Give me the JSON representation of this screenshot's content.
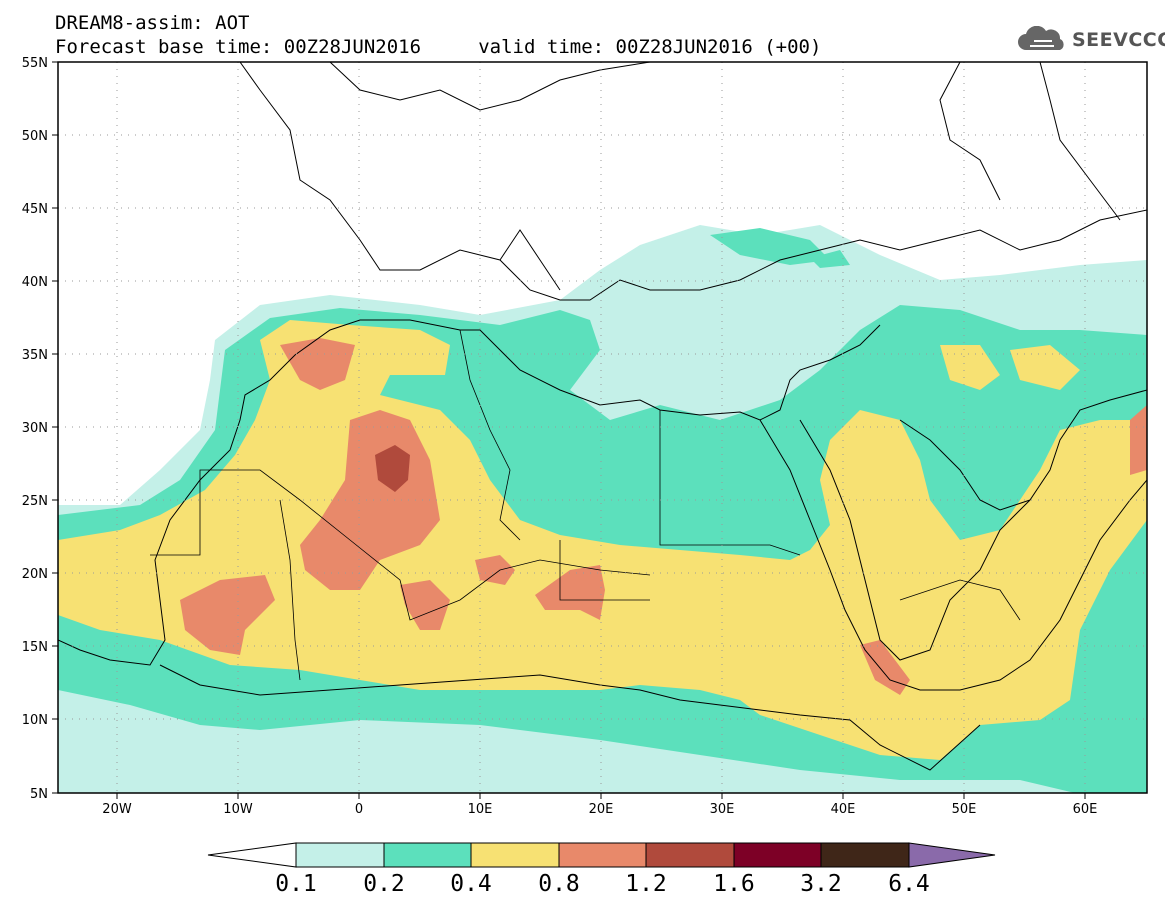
{
  "title": {
    "line1": "DREAM8-assim: AOT",
    "line2": "Forecast base time: 00Z28JUN2016     valid time: 00Z28JUN2016 (+00)"
  },
  "logo": {
    "text": "SEEVCCC",
    "icon": "cloud-icon"
  },
  "map": {
    "lat_labels": [
      "55N",
      "50N",
      "45N",
      "40N",
      "35N",
      "30N",
      "25N",
      "20N",
      "15N",
      "10N",
      "5N"
    ],
    "lon_labels": [
      "20W",
      "10W",
      "0",
      "10E",
      "20E",
      "30E",
      "40E",
      "50E",
      "60E"
    ],
    "extent": {
      "lon": [
        -25,
        65
      ],
      "lat": [
        5,
        55
      ]
    },
    "gridlines": "dotted"
  },
  "colorbar": {
    "labels": [
      "0.1",
      "0.2",
      "0.4",
      "0.8",
      "1.2",
      "1.6",
      "3.2",
      "6.4"
    ],
    "colors": [
      "#c4f0e8",
      "#5ce0bc",
      "#f7e173",
      "#e8896a",
      "#b04a3c",
      "#7d0026",
      "#3f2618",
      "#8a6aaa"
    ],
    "under_color": "#ffffff"
  },
  "colors": {
    "aot_0_1": "#c4f0e8",
    "aot_0_2": "#5ce0bc",
    "aot_0_4": "#f7e173",
    "aot_0_8": "#e8896a",
    "aot_1_2": "#b04a3c"
  }
}
